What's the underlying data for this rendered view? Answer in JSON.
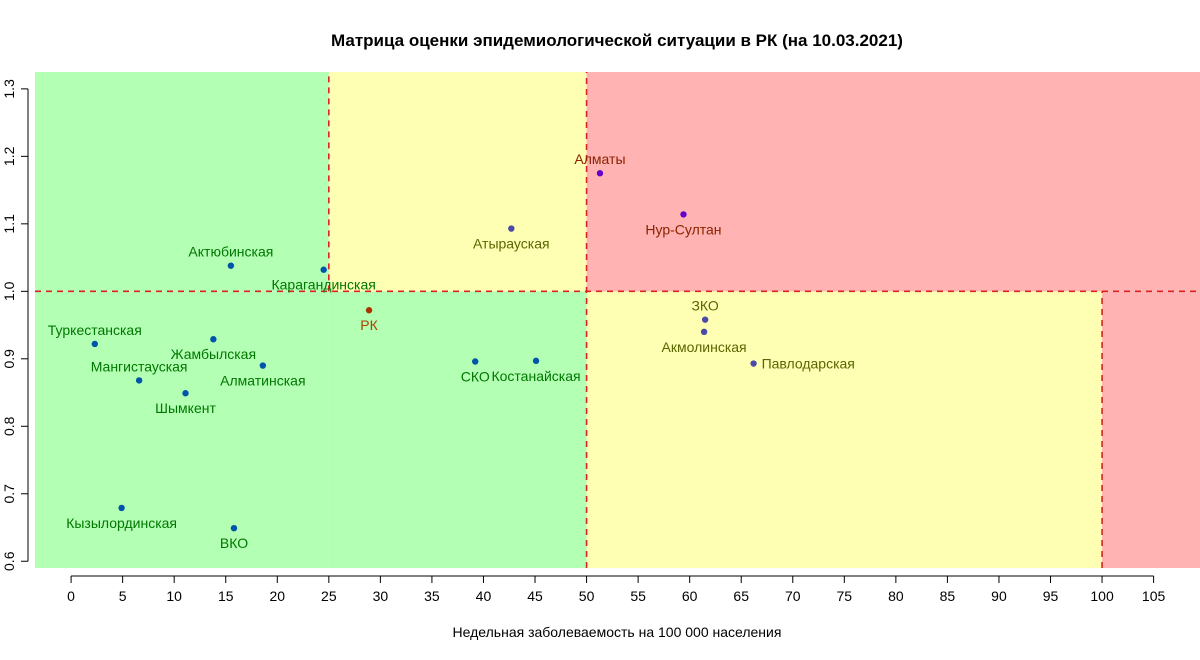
{
  "chart_data": {
    "type": "scatter",
    "title": "Матрица оценки эпидемиологической ситуации в РК (на 10.03.2021)",
    "xlabel": "Недельная заболеваемость на 100 000 населения",
    "ylabel": "",
    "xlim": [
      -3.5,
      109.5
    ],
    "ylim": [
      0.59,
      1.325
    ],
    "x_ticks": [
      0,
      5,
      10,
      15,
      20,
      25,
      30,
      35,
      40,
      45,
      50,
      55,
      60,
      65,
      70,
      75,
      80,
      85,
      90,
      95,
      100,
      105
    ],
    "y_ticks": [
      0.6,
      0.7,
      0.8,
      0.9,
      1.0,
      1.1,
      1.2,
      1.3
    ],
    "grid": false,
    "zones": [
      {
        "x": [
          -3.5,
          25
        ],
        "y": [
          0.59,
          1.0
        ],
        "color": "#b3ffb3"
      },
      {
        "x": [
          -3.5,
          25
        ],
        "y": [
          1.0,
          1.325
        ],
        "color": "#b3ffb3"
      },
      {
        "x": [
          25,
          50
        ],
        "y": [
          0.59,
          1.0
        ],
        "color": "#b3ffb3"
      },
      {
        "x": [
          25,
          50
        ],
        "y": [
          1.0,
          1.325
        ],
        "color": "#ffffb3"
      },
      {
        "x": [
          50,
          100
        ],
        "y": [
          0.59,
          1.0
        ],
        "color": "#ffffb3"
      },
      {
        "x": [
          50,
          109.5
        ],
        "y": [
          1.0,
          1.325
        ],
        "color": "#ffb3b3"
      },
      {
        "x": [
          100,
          109.5
        ],
        "y": [
          0.59,
          1.0
        ],
        "color": "#ffb3b3"
      }
    ],
    "reference_lines": [
      {
        "orientation": "h",
        "value": 1.0,
        "from": -3.5,
        "to": 109.5
      },
      {
        "orientation": "v",
        "value": 25,
        "from": 1.0,
        "to": 1.325
      },
      {
        "orientation": "v",
        "value": 50,
        "from": 0.59,
        "to": 1.325
      },
      {
        "orientation": "v",
        "value": 100,
        "from": 0.59,
        "to": 1.0
      }
    ],
    "line_color": "#dd2222",
    "points": [
      {
        "name": "Алматы",
        "x": 51.3,
        "y": 1.175,
        "label_pos": "above",
        "color": "#6600cc",
        "label_color": "#8b2200"
      },
      {
        "name": "Нур-Султан",
        "x": 59.4,
        "y": 1.114,
        "label_pos": "below",
        "color": "#6600cc",
        "label_color": "#8b2200"
      },
      {
        "name": "Атырауская",
        "x": 42.7,
        "y": 1.093,
        "label_pos": "below",
        "color": "#4a4aa8",
        "label_color": "#5a6600"
      },
      {
        "name": "Актюбинская",
        "x": 15.5,
        "y": 1.038,
        "label_pos": "above",
        "color": "#0055aa",
        "label_color": "#007700"
      },
      {
        "name": "Карагандинская",
        "x": 24.5,
        "y": 1.032,
        "label_pos": "below",
        "color": "#0055aa",
        "label_color": "#007700"
      },
      {
        "name": "РК",
        "x": 28.9,
        "y": 0.972,
        "label_pos": "below",
        "color": "#aa3300",
        "label_color": "#aa4400"
      },
      {
        "name": "ЗКО",
        "x": 61.5,
        "y": 0.958,
        "label_pos": "above",
        "color": "#4a4aa8",
        "label_color": "#5a6600"
      },
      {
        "name": "Акмолинская",
        "x": 61.4,
        "y": 0.94,
        "label_pos": "below",
        "color": "#4a4aa8",
        "label_color": "#5a6600"
      },
      {
        "name": "Павлодарская",
        "x": 66.2,
        "y": 0.893,
        "label_pos": "right",
        "color": "#4a4aa8",
        "label_color": "#5a6600"
      },
      {
        "name": "Туркестанская",
        "x": 2.3,
        "y": 0.922,
        "label_pos": "above",
        "color": "#0055aa",
        "label_color": "#007700"
      },
      {
        "name": "Жамбылская",
        "x": 13.8,
        "y": 0.929,
        "label_pos": "below",
        "color": "#0055aa",
        "label_color": "#007700"
      },
      {
        "name": "Мангистауская",
        "x": 6.6,
        "y": 0.868,
        "label_pos": "above",
        "color": "#0055aa",
        "label_color": "#007700"
      },
      {
        "name": "Алматинская",
        "x": 18.6,
        "y": 0.89,
        "label_pos": "below",
        "color": "#0055aa",
        "label_color": "#007700"
      },
      {
        "name": "Шымкент",
        "x": 11.1,
        "y": 0.849,
        "label_pos": "below",
        "color": "#0055aa",
        "label_color": "#007700"
      },
      {
        "name": "СКО",
        "x": 39.2,
        "y": 0.896,
        "label_pos": "below",
        "color": "#0055aa",
        "label_color": "#007700"
      },
      {
        "name": "Костанайская",
        "x": 45.1,
        "y": 0.897,
        "label_pos": "below",
        "color": "#0055aa",
        "label_color": "#007700"
      },
      {
        "name": "Кызылординская",
        "x": 4.9,
        "y": 0.679,
        "label_pos": "below",
        "color": "#0055aa",
        "label_color": "#007700"
      },
      {
        "name": "ВКО",
        "x": 15.8,
        "y": 0.649,
        "label_pos": "below",
        "color": "#0055aa",
        "label_color": "#007700"
      }
    ]
  }
}
